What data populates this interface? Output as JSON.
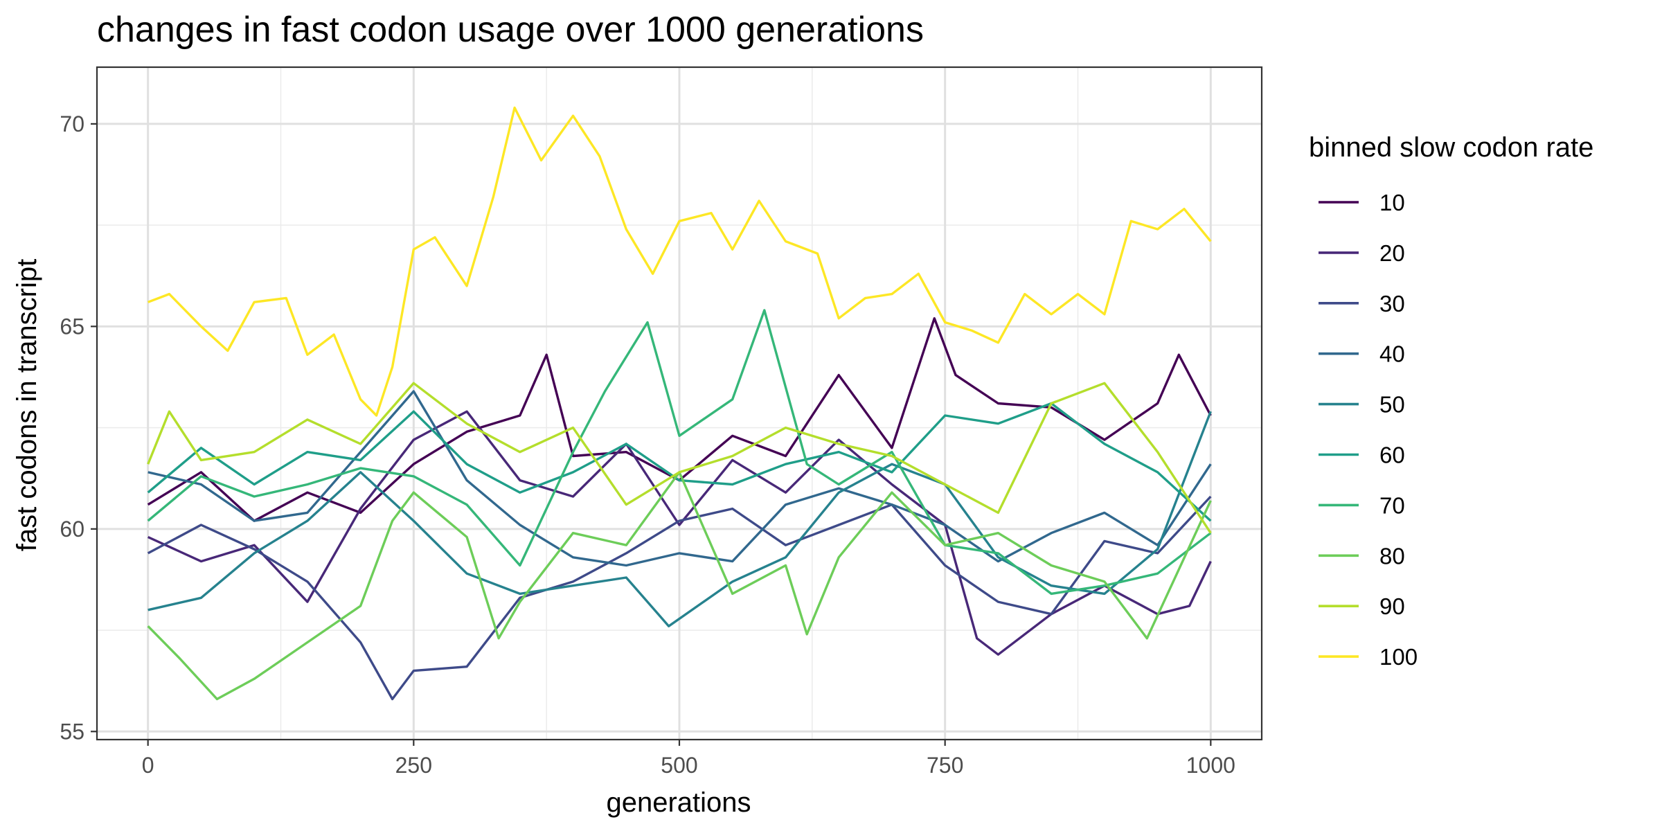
{
  "chart_data": {
    "type": "line",
    "title": "changes in fast codon usage over 1000 generations",
    "xlabel": "generations",
    "ylabel": "fast codons in transcript",
    "xlim": [
      -48,
      1048
    ],
    "ylim": [
      54.8,
      71.4
    ],
    "x_ticks": [
      0,
      250,
      500,
      750,
      1000
    ],
    "x_tick_labels": [
      "0",
      "250",
      "500",
      "750",
      "1000"
    ],
    "y_ticks": [
      55,
      60,
      65,
      70
    ],
    "y_tick_labels": [
      "55",
      "60",
      "65",
      "70"
    ],
    "grid": true,
    "legend": {
      "title": "binned slow codon rate",
      "position": "right"
    },
    "series": [
      {
        "name": "10",
        "color": "#440154",
        "x": [
          0,
          50,
          100,
          150,
          200,
          250,
          300,
          350,
          375,
          400,
          450,
          500,
          550,
          600,
          650,
          700,
          740,
          760,
          800,
          850,
          900,
          950,
          970,
          1000
        ],
        "y": [
          60.6,
          61.4,
          60.2,
          60.9,
          60.4,
          61.6,
          62.4,
          62.8,
          64.3,
          61.8,
          61.9,
          61.2,
          62.3,
          61.8,
          63.8,
          62.0,
          65.2,
          63.8,
          63.1,
          63.0,
          62.2,
          63.1,
          64.3,
          62.8
        ]
      },
      {
        "name": "20",
        "color": "#482878",
        "x": [
          0,
          50,
          100,
          150,
          200,
          250,
          300,
          350,
          400,
          450,
          500,
          550,
          600,
          650,
          700,
          750,
          780,
          800,
          850,
          900,
          950,
          980,
          1000
        ],
        "y": [
          59.8,
          59.2,
          59.6,
          58.2,
          60.5,
          62.2,
          62.9,
          61.2,
          60.8,
          62.1,
          60.1,
          61.7,
          60.9,
          62.2,
          61.1,
          60.1,
          57.3,
          56.9,
          57.9,
          58.6,
          57.9,
          58.1,
          59.2
        ]
      },
      {
        "name": "30",
        "color": "#3E4A89",
        "x": [
          0,
          50,
          100,
          150,
          200,
          230,
          250,
          300,
          350,
          400,
          450,
          500,
          550,
          600,
          650,
          700,
          750,
          800,
          850,
          900,
          950,
          1000
        ],
        "y": [
          59.4,
          60.1,
          59.5,
          58.7,
          57.2,
          55.8,
          56.5,
          56.6,
          58.3,
          58.7,
          59.4,
          60.2,
          60.5,
          59.6,
          60.1,
          60.6,
          59.1,
          58.2,
          57.9,
          59.7,
          59.4,
          60.8
        ]
      },
      {
        "name": "40",
        "color": "#31688E",
        "x": [
          0,
          50,
          100,
          150,
          200,
          250,
          300,
          350,
          400,
          450,
          500,
          550,
          600,
          650,
          700,
          750,
          800,
          850,
          900,
          950,
          1000
        ],
        "y": [
          61.4,
          61.1,
          60.2,
          60.4,
          61.9,
          63.4,
          61.2,
          60.1,
          59.3,
          59.1,
          59.4,
          59.2,
          60.6,
          61.0,
          60.6,
          60.1,
          59.2,
          59.9,
          60.4,
          59.6,
          61.6
        ]
      },
      {
        "name": "50",
        "color": "#26828E",
        "x": [
          0,
          50,
          100,
          150,
          200,
          250,
          300,
          350,
          400,
          450,
          490,
          550,
          600,
          650,
          700,
          750,
          800,
          850,
          900,
          950,
          1000
        ],
        "y": [
          58.0,
          58.3,
          59.4,
          60.2,
          61.4,
          60.2,
          58.9,
          58.4,
          58.6,
          58.8,
          57.6,
          58.7,
          59.3,
          60.9,
          61.6,
          61.1,
          59.3,
          58.6,
          58.4,
          59.5,
          62.9
        ]
      },
      {
        "name": "60",
        "color": "#1F9E89",
        "x": [
          0,
          50,
          100,
          150,
          200,
          250,
          300,
          350,
          400,
          450,
          500,
          550,
          600,
          650,
          700,
          750,
          800,
          850,
          900,
          950,
          1000
        ],
        "y": [
          60.9,
          62.0,
          61.1,
          61.9,
          61.7,
          62.9,
          61.6,
          60.9,
          61.4,
          62.1,
          61.2,
          61.1,
          61.6,
          61.9,
          61.4,
          62.8,
          62.6,
          63.1,
          62.1,
          61.4,
          60.2
        ]
      },
      {
        "name": "70",
        "color": "#35B779",
        "x": [
          0,
          50,
          100,
          150,
          200,
          250,
          300,
          350,
          400,
          430,
          470,
          500,
          550,
          580,
          620,
          650,
          700,
          750,
          800,
          850,
          900,
          950,
          1000
        ],
        "y": [
          60.2,
          61.3,
          60.8,
          61.1,
          61.5,
          61.3,
          60.6,
          59.1,
          61.9,
          63.4,
          65.1,
          62.3,
          63.2,
          65.4,
          61.6,
          61.1,
          61.9,
          59.6,
          59.4,
          58.4,
          58.6,
          58.9,
          59.9
        ]
      },
      {
        "name": "80",
        "color": "#6DCD59",
        "x": [
          0,
          30,
          65,
          100,
          150,
          200,
          230,
          250,
          300,
          330,
          350,
          400,
          450,
          500,
          550,
          600,
          620,
          650,
          700,
          750,
          800,
          850,
          900,
          940,
          1000
        ],
        "y": [
          57.6,
          56.8,
          55.8,
          56.3,
          57.2,
          58.1,
          60.2,
          60.9,
          59.8,
          57.3,
          58.2,
          59.9,
          59.6,
          61.4,
          58.4,
          59.1,
          57.4,
          59.3,
          60.9,
          59.6,
          59.9,
          59.1,
          58.7,
          57.3,
          60.7
        ]
      },
      {
        "name": "90",
        "color": "#B4DE2C",
        "x": [
          0,
          20,
          50,
          100,
          150,
          200,
          250,
          300,
          350,
          400,
          450,
          500,
          550,
          600,
          650,
          700,
          750,
          800,
          850,
          900,
          950,
          1000
        ],
        "y": [
          61.6,
          62.9,
          61.7,
          61.9,
          62.7,
          62.1,
          63.6,
          62.6,
          61.9,
          62.5,
          60.6,
          61.4,
          61.8,
          62.5,
          62.1,
          61.8,
          61.1,
          60.4,
          63.1,
          63.6,
          61.9,
          59.9
        ]
      },
      {
        "name": "100",
        "color": "#FDE725",
        "x": [
          0,
          20,
          50,
          75,
          100,
          130,
          150,
          175,
          200,
          215,
          230,
          250,
          270,
          300,
          325,
          345,
          370,
          400,
          425,
          450,
          475,
          500,
          530,
          550,
          575,
          600,
          630,
          650,
          675,
          700,
          725,
          750,
          775,
          800,
          825,
          850,
          875,
          900,
          925,
          950,
          975,
          1000
        ],
        "y": [
          65.6,
          65.8,
          65.0,
          64.4,
          65.6,
          65.7,
          64.3,
          64.8,
          63.2,
          62.8,
          64.0,
          66.9,
          67.2,
          66.0,
          68.2,
          70.4,
          69.1,
          70.2,
          69.2,
          67.4,
          66.3,
          67.6,
          67.8,
          66.9,
          68.1,
          67.1,
          66.8,
          65.2,
          65.7,
          65.8,
          66.3,
          65.1,
          64.9,
          64.6,
          65.8,
          65.3,
          65.8,
          65.3,
          67.6,
          67.4,
          67.9,
          67.1
        ]
      }
    ]
  }
}
